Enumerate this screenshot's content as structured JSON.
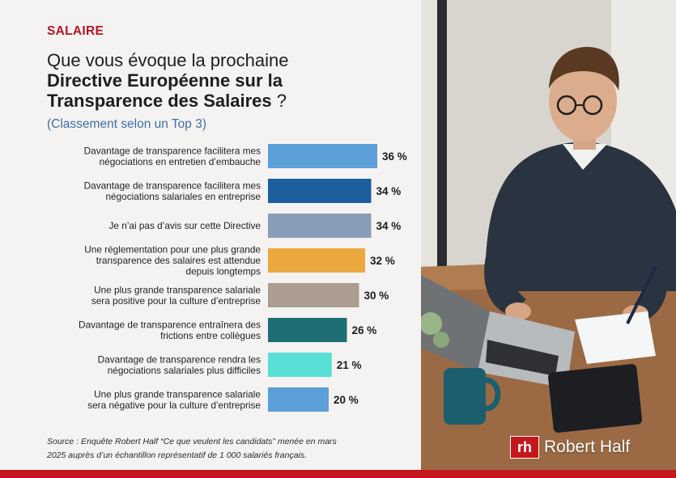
{
  "header": {
    "category": "SALAIRE",
    "title_line1": "Que vous évoque la prochaine",
    "title_line2": "Directive Européenne sur la",
    "title_line3": "Transparence des Salaires",
    "title_suffix": " ?",
    "subtitle": "(Classement selon un Top 3)"
  },
  "chart_data": {
    "type": "bar",
    "orientation": "horizontal",
    "categories": [
      [
        "Davantage de transparence facilitera mes",
        "négociations en entretien d’embauche"
      ],
      [
        "Davantage de transparence facilitera mes",
        "négociations salariales en entreprise"
      ],
      [
        "Je n’ai pas d’avis sur cette Directive"
      ],
      [
        "Une réglementation pour une plus grande",
        "transparence des salaires est attendue",
        "depuis longtemps"
      ],
      [
        "Une plus grande transparence salariale",
        "sera positive pour la culture d’entreprise"
      ],
      [
        "Davantage de transparence entraînera des",
        "frictions entre collègues"
      ],
      [
        "Davantage de transparence rendra les",
        "négociations salariales plus difficiles"
      ],
      [
        "Une plus grande transparence salariale",
        "sera négative pour la culture d’entreprise"
      ]
    ],
    "values": [
      36,
      34,
      34,
      32,
      30,
      26,
      21,
      20
    ],
    "value_labels": [
      "36 %",
      "34 %",
      "34 %",
      "32 %",
      "30 %",
      "26 %",
      "21 %",
      "20 %"
    ],
    "colors": [
      "#5b9fd9",
      "#1d5e9e",
      "#8a9db7",
      "#eaa83e",
      "#ab9d8f",
      "#1f6e75",
      "#57dfd6",
      "#5b9fd9"
    ],
    "xlim": [
      0,
      36
    ],
    "grid": false,
    "legend": "none"
  },
  "source": {
    "line1": "Source : Enquête Robert Half “Ce que veulent les candidats” menée en mars",
    "line2": "2025 auprès d’un échantillon représentatif de 1 000 salariés français."
  },
  "brand": {
    "mark": "rh",
    "name": "Robert Half"
  },
  "photo": {
    "icon": "office-man-laptop-photo"
  }
}
